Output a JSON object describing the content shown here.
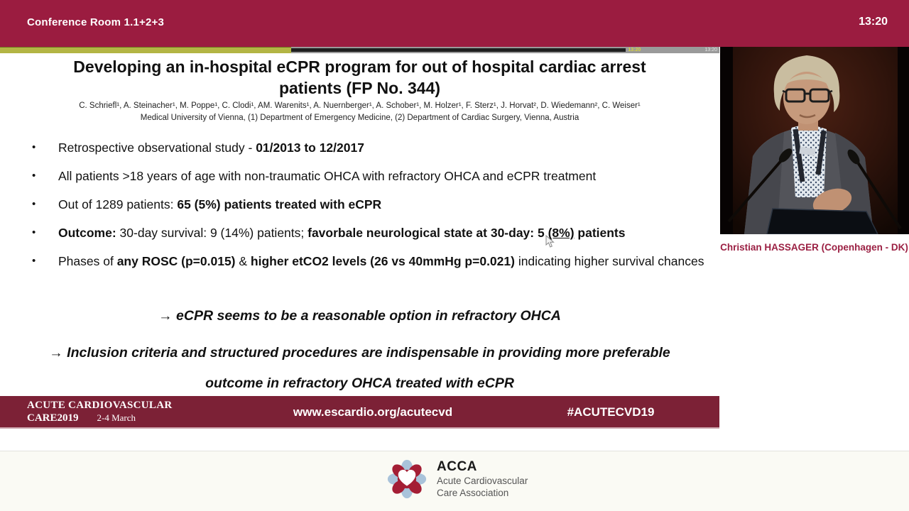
{
  "header": {
    "room_label": "Conference Room 1.1+2+3",
    "clock": "13:20"
  },
  "player": {
    "elapsed_percent": 40.5,
    "buffered_percent": 87,
    "playhead_time": "13:20",
    "end_time": "13:20"
  },
  "slide": {
    "title_line1": "Developing an in-hospital eCPR program for out of hospital cardiac arrest",
    "title_line2": "patients (FP No. 344)",
    "authors": "C. Schriefl¹, A. Steinacher¹, M. Poppe¹, C. Clodi¹, AM. Warenits¹, A. Nuernberger¹, A. Schober¹, M. Holzer¹, F. Sterz¹, J. Horvat², D. Wiedemann², C. Weiser¹",
    "affiliation": "Medical University of Vienna, (1) Department of Emergency Medicine, (2) Department of Cardiac Surgery, Vienna, Austria",
    "bullets": [
      [
        {
          "t": "Retrospective observational study - "
        },
        {
          "t": "01/2013 to 12/2017",
          "b": true
        }
      ],
      [
        {
          "t": "All patients >18 years of age with non-traumatic OHCA with refractory OHCA and eCPR treatment"
        }
      ],
      [
        {
          "t": "Out of 1289 patients: "
        },
        {
          "t": "65 (5%) patients treated with eCPR",
          "b": true
        }
      ],
      [
        {
          "t": "Outcome:",
          "b": true
        },
        {
          "t": " 30-day survival: 9 (14%) patients; "
        },
        {
          "t": "favorbale neurological state at 30-day: 5 ",
          "b": true
        },
        {
          "t": "(8%)",
          "b": true,
          "u": true
        },
        {
          "t": " patients",
          "b": true
        }
      ],
      [
        {
          "t": "Phases of "
        },
        {
          "t": "any ROSC (p=0.015)",
          "b": true
        },
        {
          "t": " & "
        },
        {
          "t": "higher etCO2 levels (26 vs 40mmHg p=0.021)",
          "b": true
        },
        {
          "t": " indicating higher survival chances"
        }
      ]
    ],
    "conclusions": [
      "→ eCPR seems to be a reasonable option in refractory OHCA",
      "→ Inclusion criteria and structured procedures are indispensable in providing more preferable outcome in refractory OHCA treated with eCPR"
    ],
    "footer": {
      "brand_line1": "ACUTE CARDIOVASCULAR",
      "brand_line2": "CARE2019",
      "brand_dates": "2-4 March",
      "url": "www.escardio.org/acutecvd",
      "hashtag": "#ACUTECVD19"
    }
  },
  "video": {
    "caption": "Christian HASSAGER (Copenhagen - DK)"
  },
  "branding": {
    "logo_acronym": "ACCA",
    "logo_line1": "Acute Cardiovascular",
    "logo_line2": "Care Association"
  },
  "colors": {
    "header_bg": "#9b1c40",
    "slide_footer_bg": "#7c2136",
    "caption_text": "#9b2043",
    "progress_yellow": "#b3b544",
    "logo_red": "#a41e35",
    "logo_blue": "#a9c3da"
  }
}
